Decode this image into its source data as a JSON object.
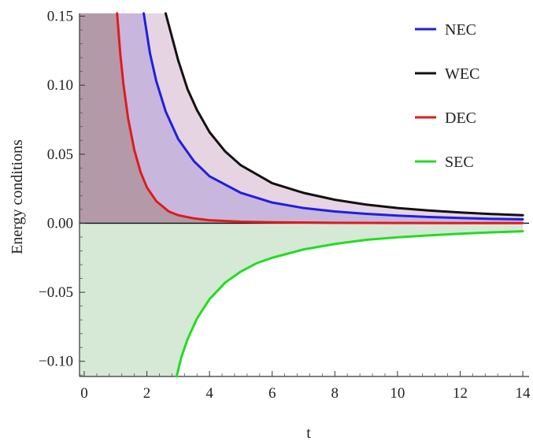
{
  "chart_data": {
    "type": "line",
    "title": "",
    "xlabel": "t",
    "ylabel": "Energy conditions",
    "xlim": [
      -0.15,
      14.2
    ],
    "ylim": [
      -0.111,
      0.152
    ],
    "x_ticks": [
      0,
      2,
      4,
      6,
      8,
      10,
      12,
      14
    ],
    "y_ticks": [
      -0.1,
      -0.05,
      0.0,
      0.05,
      0.1,
      0.15
    ],
    "x_tick_labels": [
      "0",
      "2",
      "4",
      "6",
      "8",
      "10",
      "12",
      "14"
    ],
    "y_tick_labels": [
      "−0.10",
      "−0.05",
      "0.00",
      "0.05",
      "0.10",
      "0.15"
    ],
    "legend_position": "top-right",
    "grid": false,
    "series": [
      {
        "name": "NEC",
        "color": "#1f1fe0",
        "fill": "#c9b6dc",
        "x": [
          1.9,
          2.1,
          2.3,
          2.6,
          3.0,
          3.5,
          4.0,
          5.0,
          6.0,
          7.0,
          8.0,
          9.0,
          10.0,
          11.0,
          12.0,
          13.0,
          14.0
        ],
        "y": [
          0.152,
          0.123,
          0.103,
          0.081,
          0.061,
          0.045,
          0.034,
          0.022,
          0.015,
          0.011,
          0.0085,
          0.0068,
          0.0055,
          0.0045,
          0.0038,
          0.0032,
          0.0028
        ]
      },
      {
        "name": "WEC",
        "color": "#111111",
        "fill": "#e7d4e2",
        "x": [
          2.6,
          2.8,
          3.0,
          3.3,
          3.6,
          4.0,
          4.5,
          5.0,
          6.0,
          7.0,
          8.0,
          9.0,
          10.0,
          11.0,
          12.0,
          13.0,
          14.0
        ],
        "y": [
          0.152,
          0.135,
          0.118,
          0.097,
          0.082,
          0.066,
          0.052,
          0.042,
          0.029,
          0.022,
          0.017,
          0.0135,
          0.011,
          0.0092,
          0.0078,
          0.0067,
          0.0058
        ]
      },
      {
        "name": "DEC",
        "color": "#e01b1b",
        "fill": "#b49aa8",
        "x": [
          1.05,
          1.15,
          1.25,
          1.4,
          1.6,
          1.8,
          2.0,
          2.3,
          2.7,
          3.0,
          3.5,
          4.0,
          5.0,
          6.0,
          7.0,
          8.0,
          10.0,
          12.0,
          14.0
        ],
        "y": [
          0.152,
          0.123,
          0.101,
          0.076,
          0.053,
          0.037,
          0.026,
          0.016,
          0.0085,
          0.0058,
          0.0035,
          0.0022,
          0.0011,
          0.0007,
          0.0005,
          0.0003,
          0.0002,
          0.0001,
          0.0001
        ]
      },
      {
        "name": "SEC",
        "color": "#22dd22",
        "fill": "#d6e8d6",
        "x": [
          2.95,
          3.1,
          3.3,
          3.6,
          4.0,
          4.5,
          5.0,
          5.5,
          6.0,
          7.0,
          8.0,
          9.0,
          10.0,
          11.0,
          12.0,
          13.0,
          14.0
        ],
        "y": [
          -0.111,
          -0.097,
          -0.084,
          -0.069,
          -0.055,
          -0.043,
          -0.035,
          -0.029,
          -0.025,
          -0.019,
          -0.015,
          -0.012,
          -0.0102,
          -0.0088,
          -0.0076,
          -0.0066,
          -0.0058
        ]
      }
    ]
  }
}
